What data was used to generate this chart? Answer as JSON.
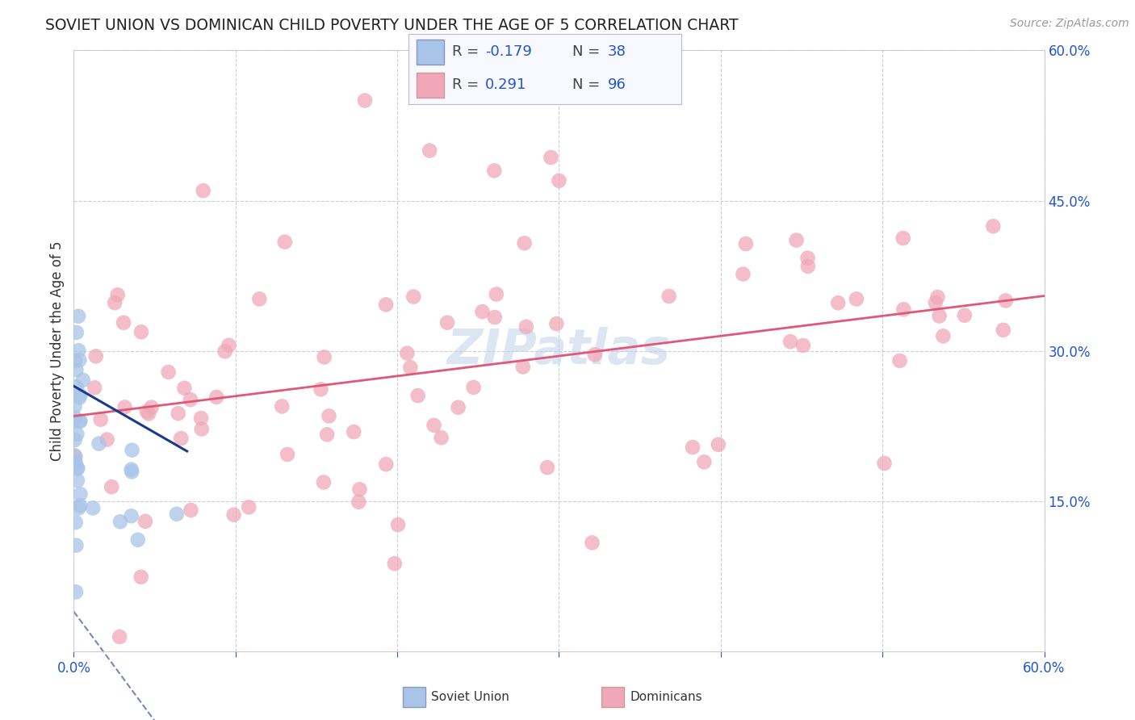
{
  "title": "SOVIET UNION VS DOMINICAN CHILD POVERTY UNDER THE AGE OF 5 CORRELATION CHART",
  "source": "Source: ZipAtlas.com",
  "ylabel": "Child Poverty Under the Age of 5",
  "xlim": [
    0.0,
    0.6
  ],
  "ylim": [
    0.0,
    0.6
  ],
  "background_color": "#ffffff",
  "plot_bg_color": "#ffffff",
  "grid_color": "#c8c8d8",
  "soviet_color": "#a8c4e8",
  "dominican_color": "#f0a8b8",
  "soviet_line_color": "#1a3a8a",
  "dominican_line_color": "#e05878",
  "soviet_R": -0.179,
  "soviet_N": 38,
  "dominican_R": 0.291,
  "dominican_N": 96,
  "legend_label_soviet": "Soviet Union",
  "legend_label_dominican": "Dominicans",
  "text_color": "#2255cc",
  "label_color": "#333333",
  "watermark_color": "#c0d0e8",
  "dom_trend_y0": 0.235,
  "dom_trend_y1": 0.355,
  "sov_trend_y0": 0.265,
  "sov_trend_y1": 0.245
}
